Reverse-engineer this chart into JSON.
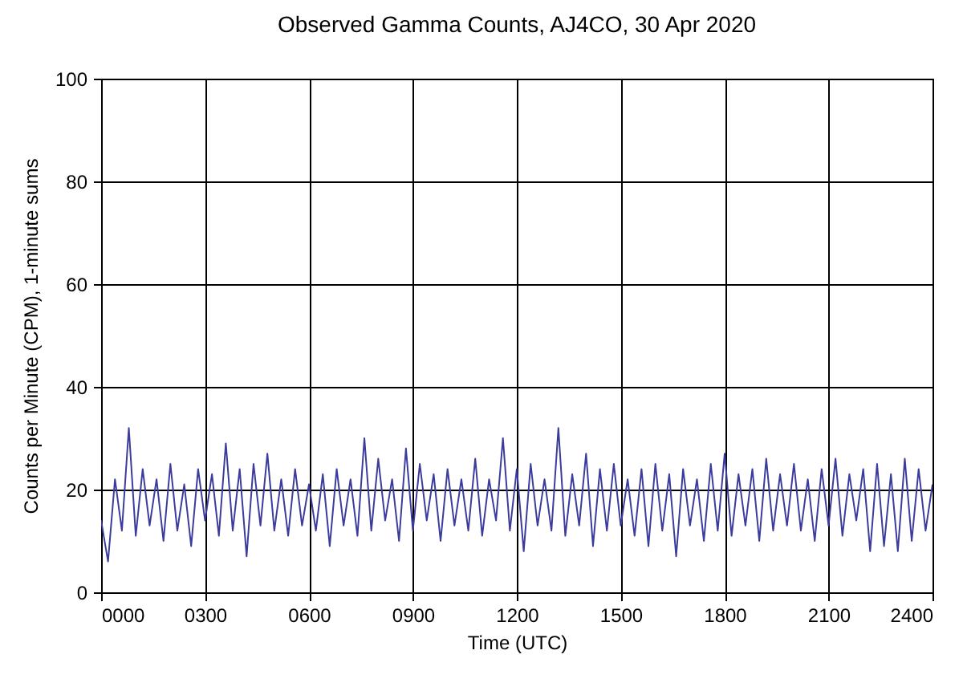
{
  "chart_data": {
    "type": "line",
    "title": "Observed Gamma Counts, AJ4CO, 30 Apr 2020",
    "xlabel": "Time (UTC)",
    "ylabel": "Counts per Minute (CPM), 1-minute sums",
    "x": [
      0,
      20,
      40,
      60,
      80,
      100,
      120,
      140,
      160,
      180,
      200,
      220,
      240,
      260,
      280,
      300,
      320,
      340,
      360,
      380,
      400,
      420,
      440,
      460,
      480,
      500,
      520,
      540,
      560,
      580,
      600,
      620,
      640,
      660,
      680,
      700,
      720,
      740,
      760,
      780,
      800,
      820,
      840,
      860,
      880,
      900,
      920,
      940,
      960,
      980,
      1000,
      1020,
      1040,
      1060,
      1080,
      1100,
      1120,
      1140,
      1160,
      1180,
      1200,
      1220,
      1240,
      1260,
      1280,
      1300,
      1320,
      1340,
      1360,
      1380,
      1400,
      1420,
      1440,
      1460,
      1480,
      1500,
      1520,
      1540,
      1560,
      1580,
      1600,
      1620,
      1640,
      1660,
      1680,
      1700,
      1720,
      1740,
      1760,
      1780,
      1800,
      1820,
      1840,
      1860,
      1880,
      1900,
      1920,
      1940,
      1960,
      1980,
      2000,
      2020,
      2040,
      2060,
      2080,
      2100,
      2120,
      2140,
      2160,
      2180,
      2200,
      2220,
      2240,
      2260,
      2280,
      2300,
      2320,
      2340,
      2360,
      2380,
      2400
    ],
    "series": [
      {
        "color": "#3c3c9c",
        "values": [
          14,
          6,
          22,
          12,
          32,
          11,
          24,
          13,
          22,
          10,
          25,
          12,
          21,
          9,
          24,
          14,
          23,
          11,
          29,
          12,
          24,
          7,
          25,
          13,
          27,
          12,
          22,
          11,
          24,
          13,
          21,
          12,
          23,
          9,
          24,
          13,
          22,
          11,
          30,
          12,
          26,
          14,
          22,
          10,
          28,
          12,
          25,
          14,
          23,
          10,
          24,
          13,
          22,
          12,
          26,
          11,
          22,
          14,
          30,
          12,
          24,
          8,
          25,
          13,
          22,
          12,
          32,
          11,
          23,
          13,
          27,
          9,
          24,
          12,
          25,
          13,
          22,
          11,
          24,
          9,
          25,
          12,
          23,
          7,
          24,
          13,
          22,
          10,
          25,
          12,
          27,
          11,
          23,
          13,
          24,
          10,
          26,
          12,
          23,
          13,
          25,
          12,
          22,
          10,
          24,
          13,
          26,
          11,
          23,
          14,
          24,
          8,
          25,
          9,
          23,
          8,
          26,
          10,
          24,
          12,
          21
        ]
      }
    ],
    "xlim": [
      0,
      2400
    ],
    "xticks": [
      {
        "value": 0,
        "label": "0000"
      },
      {
        "value": 300,
        "label": "0300"
      },
      {
        "value": 600,
        "label": "0600"
      },
      {
        "value": 900,
        "label": "0900"
      },
      {
        "value": 1200,
        "label": "1200"
      },
      {
        "value": 1500,
        "label": "1500"
      },
      {
        "value": 1800,
        "label": "1800"
      },
      {
        "value": 2100,
        "label": "2100"
      },
      {
        "value": 2400,
        "label": "2400"
      }
    ],
    "ylim": [
      0,
      100
    ],
    "yticks": [
      0,
      20,
      40,
      60,
      80,
      100
    ],
    "grid": true,
    "line_style": "solid"
  }
}
